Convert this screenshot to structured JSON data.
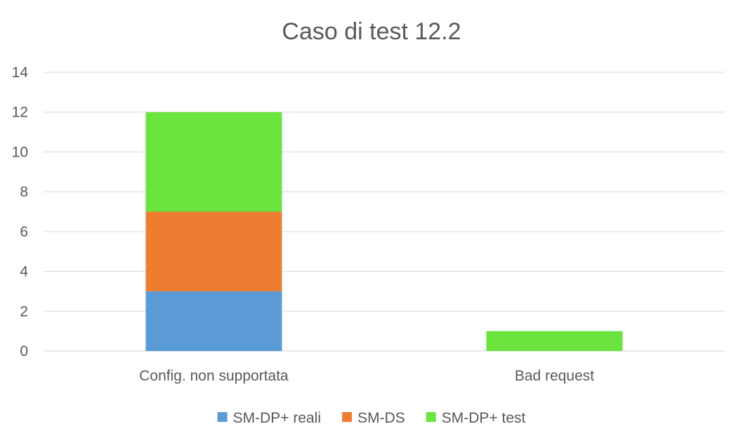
{
  "chart_data": {
    "type": "bar",
    "stacked": true,
    "title": "Caso di test 12.2",
    "xlabel": "",
    "ylabel": "",
    "categories": [
      "Config. non supportata",
      "Bad request"
    ],
    "series": [
      {
        "name": "SM-DP+ reali",
        "values": [
          3,
          0
        ],
        "color": "#5b9bd5"
      },
      {
        "name": "SM-DS",
        "values": [
          4,
          0
        ],
        "color": "#ed7d31"
      },
      {
        "name": "SM-DP+ test",
        "values": [
          5,
          1
        ],
        "color": "#6ae33f"
      }
    ],
    "ylim": [
      0,
      14
    ],
    "yticks": [
      0,
      2,
      4,
      6,
      8,
      10,
      12,
      14
    ],
    "grid": true,
    "legend_position": "bottom"
  }
}
